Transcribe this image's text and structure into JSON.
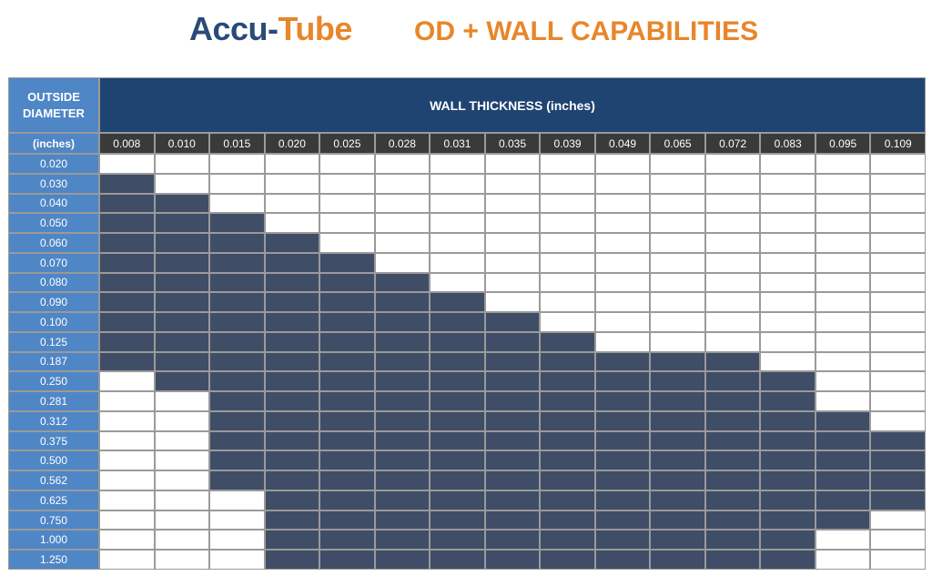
{
  "header": {
    "logo_part1": "Accu-",
    "logo_part2": "Tube",
    "title": "OD + WALL CAPABILITIES"
  },
  "table": {
    "od_header_line1": "OUTSIDE",
    "od_header_line2": "DIAMETER",
    "od_units": "(inches)",
    "wall_header": "WALL THICKNESS (inches)"
  },
  "colors": {
    "filled": "#3f4d66",
    "empty": "#ffffff",
    "od_column": "#4f86c6",
    "wall_header": "#1f4472",
    "wall_values_row": "#3a3a3a",
    "brand_blue": "#2a4a78",
    "brand_orange": "#e8862a"
  },
  "chart_data": {
    "type": "heatmap",
    "title": "OD + WALL CAPABILITIES",
    "xlabel": "WALL THICKNESS (inches)",
    "ylabel": "OUTSIDE DIAMETER (inches)",
    "x": [
      "0.008",
      "0.010",
      "0.015",
      "0.020",
      "0.025",
      "0.028",
      "0.031",
      "0.035",
      "0.039",
      "0.049",
      "0.065",
      "0.072",
      "0.083",
      "0.095",
      "0.109"
    ],
    "y": [
      "0.020",
      "0.030",
      "0.040",
      "0.050",
      "0.060",
      "0.070",
      "0.080",
      "0.090",
      "0.100",
      "0.125",
      "0.187",
      "0.250",
      "0.281",
      "0.312",
      "0.375",
      "0.500",
      "0.562",
      "0.625",
      "0.750",
      "1.000",
      "1.250"
    ],
    "values": [
      [
        0,
        0,
        0,
        0,
        0,
        0,
        0,
        0,
        0,
        0,
        0,
        0,
        0,
        0,
        0
      ],
      [
        1,
        0,
        0,
        0,
        0,
        0,
        0,
        0,
        0,
        0,
        0,
        0,
        0,
        0,
        0
      ],
      [
        1,
        1,
        0,
        0,
        0,
        0,
        0,
        0,
        0,
        0,
        0,
        0,
        0,
        0,
        0
      ],
      [
        1,
        1,
        1,
        0,
        0,
        0,
        0,
        0,
        0,
        0,
        0,
        0,
        0,
        0,
        0
      ],
      [
        1,
        1,
        1,
        1,
        0,
        0,
        0,
        0,
        0,
        0,
        0,
        0,
        0,
        0,
        0
      ],
      [
        1,
        1,
        1,
        1,
        1,
        0,
        0,
        0,
        0,
        0,
        0,
        0,
        0,
        0,
        0
      ],
      [
        1,
        1,
        1,
        1,
        1,
        1,
        0,
        0,
        0,
        0,
        0,
        0,
        0,
        0,
        0
      ],
      [
        1,
        1,
        1,
        1,
        1,
        1,
        1,
        0,
        0,
        0,
        0,
        0,
        0,
        0,
        0
      ],
      [
        1,
        1,
        1,
        1,
        1,
        1,
        1,
        1,
        0,
        0,
        0,
        0,
        0,
        0,
        0
      ],
      [
        1,
        1,
        1,
        1,
        1,
        1,
        1,
        1,
        1,
        0,
        0,
        0,
        0,
        0,
        0
      ],
      [
        1,
        1,
        1,
        1,
        1,
        1,
        1,
        1,
        1,
        1,
        1,
        1,
        0,
        0,
        0
      ],
      [
        0,
        1,
        1,
        1,
        1,
        1,
        1,
        1,
        1,
        1,
        1,
        1,
        1,
        0,
        0
      ],
      [
        0,
        0,
        1,
        1,
        1,
        1,
        1,
        1,
        1,
        1,
        1,
        1,
        1,
        0,
        0
      ],
      [
        0,
        0,
        1,
        1,
        1,
        1,
        1,
        1,
        1,
        1,
        1,
        1,
        1,
        1,
        0
      ],
      [
        0,
        0,
        1,
        1,
        1,
        1,
        1,
        1,
        1,
        1,
        1,
        1,
        1,
        1,
        1
      ],
      [
        0,
        0,
        1,
        1,
        1,
        1,
        1,
        1,
        1,
        1,
        1,
        1,
        1,
        1,
        1
      ],
      [
        0,
        0,
        1,
        1,
        1,
        1,
        1,
        1,
        1,
        1,
        1,
        1,
        1,
        1,
        1
      ],
      [
        0,
        0,
        0,
        1,
        1,
        1,
        1,
        1,
        1,
        1,
        1,
        1,
        1,
        1,
        1
      ],
      [
        0,
        0,
        0,
        1,
        1,
        1,
        1,
        1,
        1,
        1,
        1,
        1,
        1,
        1,
        0
      ],
      [
        0,
        0,
        0,
        1,
        1,
        1,
        1,
        1,
        1,
        1,
        1,
        1,
        1,
        0,
        0
      ],
      [
        0,
        0,
        0,
        1,
        1,
        1,
        1,
        1,
        1,
        1,
        1,
        1,
        1,
        0,
        0
      ]
    ]
  }
}
